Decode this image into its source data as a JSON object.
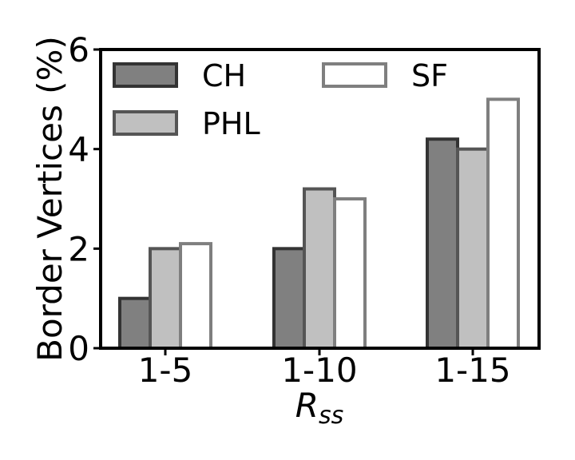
{
  "chart_data": {
    "type": "bar",
    "categories": [
      "1-5",
      "1-10",
      "1-15"
    ],
    "series": [
      {
        "name": "CH",
        "values": [
          1.0,
          2.0,
          4.2
        ],
        "fill": "#808080",
        "stroke": "#333333"
      },
      {
        "name": "PHL",
        "values": [
          2.0,
          3.2,
          4.0
        ],
        "fill": "#c0c0c0",
        "stroke": "#555555"
      },
      {
        "name": "SF",
        "values": [
          2.1,
          3.0,
          5.0
        ],
        "fill": "#ffffff",
        "stroke": "#7f7f7f"
      }
    ],
    "ylabel": "Border Vertices (%)",
    "xlabel_main": "R",
    "xlabel_sub": "ss",
    "ylim": [
      0,
      6
    ],
    "yticks": [
      "0",
      "2",
      "4",
      "6"
    ],
    "grid": false,
    "legend_position": "top-left, two columns"
  }
}
